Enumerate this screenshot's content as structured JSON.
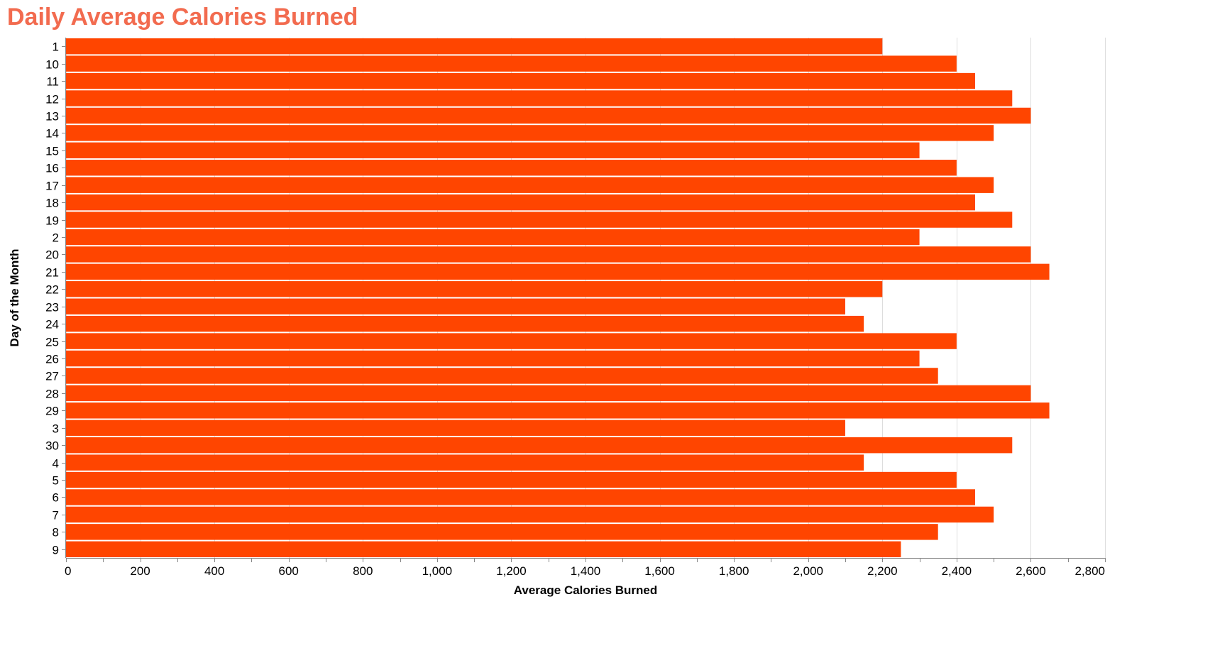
{
  "colors": {
    "title": "#F26B4F",
    "bar": "#FF4500",
    "grid": "#DDDDDD",
    "axis": "#888888",
    "text": "#000000"
  },
  "chart_data": {
    "type": "bar",
    "orientation": "horizontal",
    "title": "Daily Average Calories Burned",
    "xlabel": "Average Calories Burned",
    "ylabel": "Day of the Month",
    "xlim": [
      0,
      2800
    ],
    "x_ticks": [
      0,
      200,
      400,
      600,
      800,
      1000,
      1200,
      1400,
      1600,
      1800,
      2000,
      2200,
      2400,
      2600,
      2800
    ],
    "x_tick_labels": [
      "0",
      "200",
      "400",
      "600",
      "800",
      "1,000",
      "1,200",
      "1,400",
      "1,600",
      "1,800",
      "2,000",
      "2,200",
      "2,400",
      "2,600",
      "2,800"
    ],
    "grid": true,
    "categories": [
      "1",
      "10",
      "11",
      "12",
      "13",
      "14",
      "15",
      "16",
      "17",
      "18",
      "19",
      "2",
      "20",
      "21",
      "22",
      "23",
      "24",
      "25",
      "26",
      "27",
      "28",
      "29",
      "3",
      "30",
      "4",
      "5",
      "6",
      "7",
      "8",
      "9"
    ],
    "values": [
      2200,
      2400,
      2450,
      2550,
      2600,
      2500,
      2300,
      2400,
      2500,
      2450,
      2550,
      2300,
      2600,
      2650,
      2200,
      2100,
      2150,
      2400,
      2300,
      2350,
      2600,
      2650,
      2100,
      2550,
      2150,
      2400,
      2450,
      2500,
      2350,
      2250
    ]
  }
}
